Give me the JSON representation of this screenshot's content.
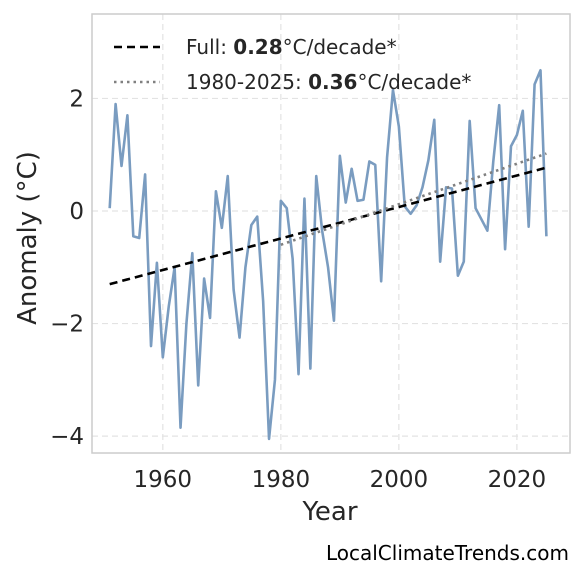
{
  "chart_data": {
    "type": "line",
    "xlabel": "Year",
    "ylabel": "Anomaly (°C)",
    "xlim": [
      1948,
      2029
    ],
    "ylim": [
      -4.3,
      3.5
    ],
    "x_ticks": [
      1960,
      1980,
      2000,
      2020
    ],
    "y_ticks": [
      -4,
      -2,
      0,
      2
    ],
    "y_tick_labels": [
      "−4",
      "−2",
      "0",
      "2"
    ],
    "grid": true,
    "legend_position": "top-left",
    "series": [
      {
        "style": "solid",
        "color": "#7a9cc0",
        "x": [
          1951,
          1952,
          1953,
          1954,
          1955,
          1956,
          1957,
          1958,
          1959,
          1960,
          1961,
          1962,
          1963,
          1964,
          1965,
          1966,
          1967,
          1968,
          1969,
          1970,
          1971,
          1972,
          1973,
          1974,
          1975,
          1976,
          1977,
          1978,
          1979,
          1980,
          1981,
          1982,
          1983,
          1984,
          1985,
          1986,
          1987,
          1988,
          1989,
          1990,
          1991,
          1992,
          1993,
          1994,
          1995,
          1996,
          1997,
          1998,
          1999,
          2000,
          2001,
          2002,
          2003,
          2004,
          2005,
          2006,
          2007,
          2008,
          2009,
          2010,
          2011,
          2012,
          2013,
          2014,
          2015,
          2016,
          2017,
          2018,
          2019,
          2020,
          2021,
          2022,
          2023,
          2024,
          2025
        ],
        "y": [
          0.05,
          1.9,
          0.8,
          1.7,
          -0.45,
          -0.48,
          0.65,
          -2.4,
          -0.92,
          -2.6,
          -1.7,
          -1.0,
          -3.85,
          -2.0,
          -0.75,
          -3.1,
          -1.2,
          -1.9,
          0.35,
          -0.3,
          0.62,
          -1.4,
          -2.25,
          -1.0,
          -0.25,
          -0.1,
          -1.6,
          -4.05,
          -3.0,
          0.18,
          0.05,
          -0.85,
          -2.9,
          0.22,
          -2.8,
          0.62,
          -0.35,
          -1.0,
          -1.95,
          0.98,
          0.15,
          0.75,
          0.18,
          0.2,
          0.88,
          0.82,
          -1.25,
          0.95,
          2.15,
          1.5,
          0.08,
          -0.05,
          0.1,
          0.42,
          0.9,
          1.62,
          -0.9,
          0.42,
          0.4,
          -1.15,
          -0.9,
          1.6,
          0.05,
          -0.15,
          -0.35,
          0.88,
          1.88,
          -0.68,
          1.15,
          1.35,
          1.78,
          -0.28,
          2.25,
          2.5,
          -0.45
        ]
      },
      {
        "style": "dashed",
        "color": "#000000",
        "label": "Full: 0.28°C/decade*",
        "x": [
          1951,
          2025
        ],
        "y": [
          -1.3,
          0.77
        ]
      },
      {
        "style": "dotted",
        "color": "#808080",
        "label": "1980-2025: 0.36°C/decade*",
        "x": [
          1980,
          2025
        ],
        "y": [
          -0.6,
          1.02
        ]
      }
    ]
  },
  "legend": {
    "full_prefix": "Full: ",
    "full_value": "0.28",
    "full_suffix": "°C/decade*",
    "recent_prefix": "1980-2025: ",
    "recent_value": "0.36",
    "recent_suffix": "°C/decade*"
  },
  "credit": "LocalClimateTrends.com"
}
